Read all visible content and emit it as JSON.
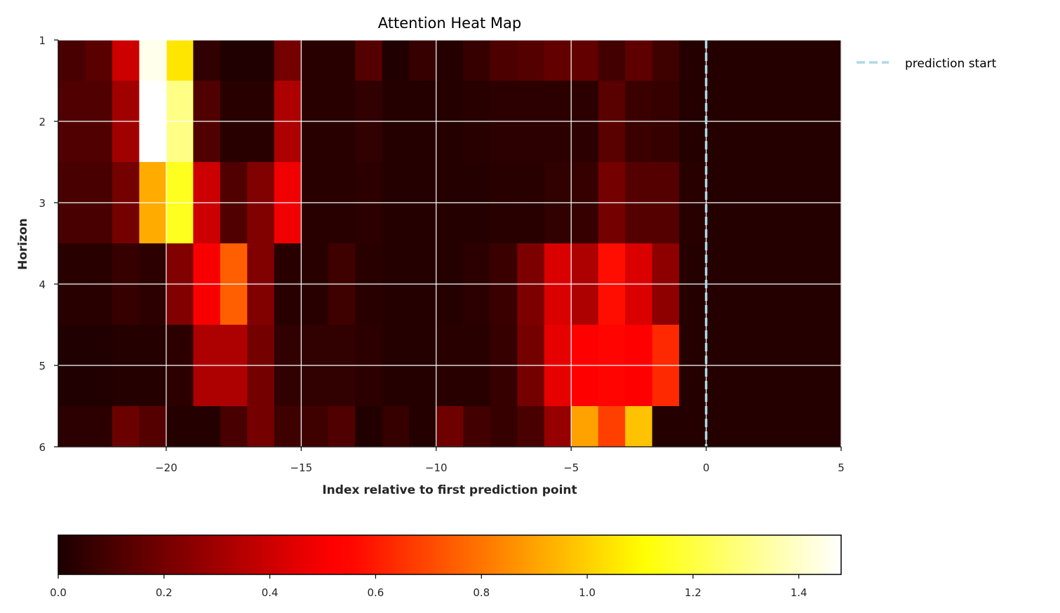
{
  "chart_data": {
    "type": "heatmap",
    "title": "Attention Heat Map",
    "xlabel": "Index relative to first prediction point",
    "ylabel": "Horizon",
    "x_range": [
      -24,
      5
    ],
    "y_range": [
      1,
      6
    ],
    "x_cells": [
      -24,
      -23,
      -22,
      -21,
      -20,
      -19,
      -18,
      -17,
      -16,
      -15,
      -14,
      -13,
      -12,
      -11,
      -10,
      -9,
      -8,
      -7,
      -6,
      -5,
      -4,
      -3,
      -2,
      -1,
      0,
      1,
      2,
      3,
      4
    ],
    "horizon_breaks": [
      1,
      1.5,
      2.5,
      3.5,
      4.5,
      5.5,
      6
    ],
    "values": [
      [
        0.1,
        0.14,
        0.4,
        1.45,
        1.05,
        0.05,
        0.01,
        0.01,
        0.2,
        0.03,
        0.03,
        0.13,
        0.01,
        0.06,
        0.02,
        0.06,
        0.11,
        0.13,
        0.16,
        0.16,
        0.09,
        0.15,
        0.08,
        0.02,
        0.02,
        0.02,
        0.02,
        0.02,
        0.02
      ],
      [
        0.12,
        0.12,
        0.3,
        1.48,
        1.3,
        0.12,
        0.03,
        0.03,
        0.33,
        0.03,
        0.03,
        0.05,
        0.02,
        0.02,
        0.02,
        0.03,
        0.04,
        0.04,
        0.04,
        0.04,
        0.14,
        0.07,
        0.06,
        0.02,
        0.02,
        0.02,
        0.02,
        0.02,
        0.02
      ],
      [
        0.1,
        0.1,
        0.2,
        0.92,
        1.15,
        0.4,
        0.12,
        0.23,
        0.48,
        0.03,
        0.03,
        0.04,
        0.02,
        0.02,
        0.02,
        0.02,
        0.03,
        0.03,
        0.05,
        0.06,
        0.2,
        0.13,
        0.13,
        0.03,
        0.02,
        0.02,
        0.02,
        0.02,
        0.02
      ],
      [
        0.03,
        0.03,
        0.06,
        0.04,
        0.23,
        0.5,
        0.75,
        0.23,
        0.03,
        0.03,
        0.08,
        0.03,
        0.02,
        0.02,
        0.02,
        0.04,
        0.07,
        0.22,
        0.43,
        0.33,
        0.57,
        0.43,
        0.26,
        0.02,
        0.02,
        0.02,
        0.02,
        0.02,
        0.02
      ],
      [
        0.01,
        0.01,
        0.02,
        0.02,
        0.04,
        0.33,
        0.33,
        0.2,
        0.05,
        0.05,
        0.05,
        0.04,
        0.02,
        0.02,
        0.03,
        0.03,
        0.06,
        0.2,
        0.46,
        0.53,
        0.55,
        0.53,
        0.63,
        0.02,
        0.02,
        0.02,
        0.02,
        0.02,
        0.02
      ],
      [
        0.04,
        0.04,
        0.18,
        0.13,
        0.02,
        0.02,
        0.1,
        0.2,
        0.08,
        0.08,
        0.12,
        0.01,
        0.06,
        0.02,
        0.19,
        0.09,
        0.06,
        0.1,
        0.28,
        0.9,
        0.68,
        0.97,
        0.02,
        0.02,
        0.02,
        0.02,
        0.02,
        0.02,
        0.02
      ]
    ],
    "x_ticks": [
      "−20",
      "−15",
      "−10",
      "−5",
      "0",
      "5"
    ],
    "y_ticks": [
      "1",
      "2",
      "3",
      "4",
      "5",
      "6"
    ],
    "grid": true,
    "colormap": "hot",
    "colorbar": {
      "range": [
        0,
        1.48
      ],
      "ticks": [
        "0.0",
        "0.2",
        "0.4",
        "0.6",
        "0.8",
        "1.0",
        "1.2",
        "1.4"
      ],
      "orientation": "horizontal"
    },
    "vline": {
      "x": 0,
      "label": "prediction start",
      "color": "#add8e6",
      "style": "dashed"
    },
    "legend": {
      "placement": "outside-top-right",
      "entries": [
        "prediction start"
      ]
    }
  }
}
